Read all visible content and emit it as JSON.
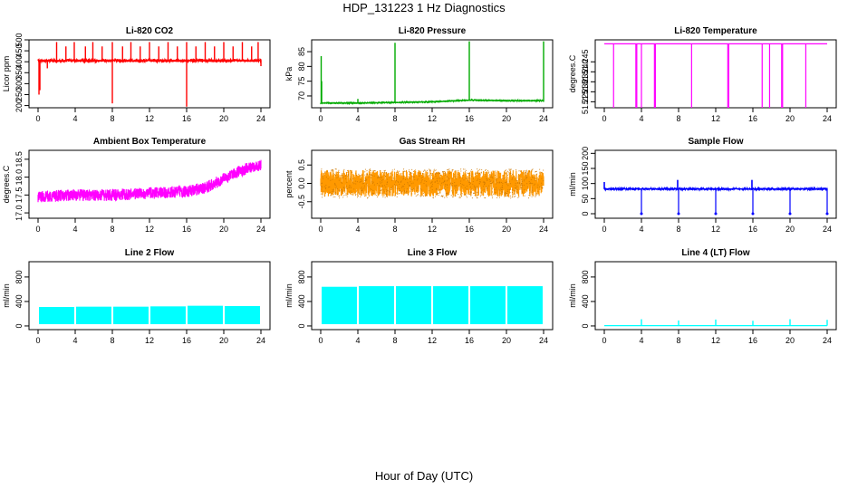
{
  "figure": {
    "title": "HDP_131223  1 Hz Diagnostics",
    "xlabel": "Hour of Day (UTC)"
  },
  "chart_data": [
    {
      "type": "line",
      "title": "Li-820 CO2",
      "ylabel": "Licor ppm",
      "color": "#ff0000",
      "xlim": [
        0,
        24
      ],
      "ylim": [
        190,
        500
      ],
      "xticks": [
        "0",
        "4",
        "8",
        "12",
        "16",
        "20",
        "24"
      ],
      "yticks": [
        "200",
        "250",
        "300",
        "350",
        "400",
        "450",
        "500"
      ],
      "baseline": 405,
      "noise": 12,
      "spikes": [
        {
          "x": 0.1,
          "y": 250
        },
        {
          "x": 0.2,
          "y": 270
        },
        {
          "x": 1.0,
          "y": 370
        },
        {
          "x": 2.0,
          "y": 490
        },
        {
          "x": 3.0,
          "y": 470
        },
        {
          "x": 3.9,
          "y": 490
        },
        {
          "x": 5.1,
          "y": 470
        },
        {
          "x": 5.9,
          "y": 490
        },
        {
          "x": 6.9,
          "y": 470
        },
        {
          "x": 8.0,
          "y": 210
        },
        {
          "x": 8.0,
          "y": 490
        },
        {
          "x": 9.1,
          "y": 470
        },
        {
          "x": 10.0,
          "y": 490
        },
        {
          "x": 11.0,
          "y": 470
        },
        {
          "x": 12.0,
          "y": 490
        },
        {
          "x": 13.0,
          "y": 470
        },
        {
          "x": 14.0,
          "y": 490
        },
        {
          "x": 15.0,
          "y": 470
        },
        {
          "x": 16.0,
          "y": 195
        },
        {
          "x": 16.0,
          "y": 490
        },
        {
          "x": 17.0,
          "y": 470
        },
        {
          "x": 18.0,
          "y": 490
        },
        {
          "x": 19.0,
          "y": 470
        },
        {
          "x": 20.0,
          "y": 490
        },
        {
          "x": 21.0,
          "y": 470
        },
        {
          "x": 22.0,
          "y": 490
        },
        {
          "x": 23.0,
          "y": 470
        },
        {
          "x": 23.7,
          "y": 490
        },
        {
          "x": 24.0,
          "y": 380
        }
      ]
    },
    {
      "type": "line",
      "title": "Li-820 Pressure",
      "ylabel": "kPa",
      "color": "#00aa00",
      "xlim": [
        0,
        24
      ],
      "ylim": [
        66,
        89
      ],
      "xticks": [
        "0",
        "4",
        "8",
        "12",
        "16",
        "20",
        "24"
      ],
      "yticks": [
        "70",
        "75",
        "80",
        "85"
      ],
      "segments": [
        [
          0,
          67.6
        ],
        [
          4,
          67.6
        ],
        [
          8,
          67.8
        ],
        [
          12,
          68.0
        ],
        [
          16,
          68.6
        ],
        [
          20,
          68.4
        ],
        [
          24,
          68.4
        ]
      ],
      "noise": 0.15,
      "spikes": [
        {
          "x": 0.05,
          "y": 83.5
        },
        {
          "x": 0.1,
          "y": 75
        },
        {
          "x": 4.0,
          "y": 69
        },
        {
          "x": 8.0,
          "y": 88
        },
        {
          "x": 16.0,
          "y": 88.5
        },
        {
          "x": 24.0,
          "y": 88.5
        }
      ]
    },
    {
      "type": "line",
      "title": "Li-820 Temperature",
      "ylabel": "degrees.C",
      "color": "#ff00ff",
      "xlim": [
        0,
        24
      ],
      "ylim": [
        51.222,
        51.256
      ],
      "xticks": [
        "0",
        "4",
        "8",
        "12",
        "16",
        "20",
        "24"
      ],
      "yticks": [
        "51.225",
        "51.230",
        "51.235",
        "51.240",
        "51.245"
      ],
      "baseline": 51.254,
      "drops": [
        1.0,
        3.4,
        3.5,
        4.0,
        5.4,
        5.5,
        9.4,
        13.3,
        13.4,
        17.0,
        17.8,
        19.1,
        19.2,
        21.7
      ]
    },
    {
      "type": "line",
      "title": "Ambient Box Temperature",
      "ylabel": "degrees.C",
      "color": "#ff00ff",
      "xlim": [
        0,
        24
      ],
      "ylim": [
        16.85,
        18.75
      ],
      "xticks": [
        "0",
        "4",
        "8",
        "12",
        "16",
        "20",
        "24"
      ],
      "yticks": [
        "17.0",
        "17.5",
        "18.0",
        "18.5"
      ],
      "trend": [
        [
          0,
          17.45
        ],
        [
          4,
          17.5
        ],
        [
          8,
          17.5
        ],
        [
          12,
          17.55
        ],
        [
          16,
          17.6
        ],
        [
          18,
          17.7
        ],
        [
          20,
          17.95
        ],
        [
          22,
          18.2
        ],
        [
          24,
          18.35
        ]
      ],
      "noise": 0.33
    },
    {
      "type": "line",
      "title": "Gas Stream RH",
      "ylabel": "percent",
      "color": "#ff9900",
      "xlim": [
        0,
        24
      ],
      "ylim": [
        -0.95,
        0.9
      ],
      "xticks": [
        "0",
        "4",
        "8",
        "12",
        "16",
        "20",
        "24"
      ],
      "yticks": [
        "-0.5",
        "0.0",
        "0.5"
      ],
      "baseline": 0.0,
      "noise": 0.72
    },
    {
      "type": "line",
      "title": "Sample Flow",
      "ylabel": "ml/min",
      "color": "#0000ff",
      "xlim": [
        0,
        24
      ],
      "ylim": [
        -15,
        210
      ],
      "xticks": [
        "0",
        "4",
        "8",
        "12",
        "16",
        "20",
        "24"
      ],
      "yticks": [
        "0",
        "50",
        "100",
        "150",
        "200"
      ],
      "baseline": 82,
      "noise": 4,
      "dips": [
        4,
        8,
        12,
        16,
        20,
        24
      ],
      "peaks": [
        {
          "x": 0.0,
          "y": 105
        },
        {
          "x": 7.9,
          "y": 112
        },
        {
          "x": 15.9,
          "y": 112
        }
      ]
    },
    {
      "type": "area",
      "title": "Line 2 Flow",
      "ylabel": "ml/min",
      "color": "#00ffff",
      "xlim": [
        0,
        24
      ],
      "ylim": [
        -60,
        1050
      ],
      "xticks": [
        "0",
        "4",
        "8",
        "12",
        "16",
        "20",
        "24"
      ],
      "yticks": [
        "0",
        "400",
        "800"
      ],
      "bands": [
        {
          "x0": 0.1,
          "x1": 3.9,
          "lo": 30,
          "hi": 310
        },
        {
          "x0": 4.1,
          "x1": 7.9,
          "lo": 30,
          "hi": 315
        },
        {
          "x0": 8.1,
          "x1": 11.9,
          "lo": 30,
          "hi": 315
        },
        {
          "x0": 12.1,
          "x1": 15.9,
          "lo": 30,
          "hi": 320
        },
        {
          "x0": 16.1,
          "x1": 19.9,
          "lo": 30,
          "hi": 330
        },
        {
          "x0": 20.1,
          "x1": 23.9,
          "lo": 30,
          "hi": 325
        }
      ]
    },
    {
      "type": "area",
      "title": "Line 3 Flow",
      "ylabel": "ml/min",
      "color": "#00ffff",
      "xlim": [
        0,
        24
      ],
      "ylim": [
        -60,
        1050
      ],
      "xticks": [
        "0",
        "4",
        "8",
        "12",
        "16",
        "20",
        "24"
      ],
      "yticks": [
        "0",
        "400",
        "800"
      ],
      "bands": [
        {
          "x0": 0.1,
          "x1": 3.9,
          "lo": 30,
          "hi": 640
        },
        {
          "x0": 4.1,
          "x1": 7.9,
          "lo": 30,
          "hi": 650
        },
        {
          "x0": 8.1,
          "x1": 11.9,
          "lo": 30,
          "hi": 650
        },
        {
          "x0": 12.1,
          "x1": 15.9,
          "lo": 30,
          "hi": 650
        },
        {
          "x0": 16.1,
          "x1": 19.9,
          "lo": 30,
          "hi": 650
        },
        {
          "x0": 20.1,
          "x1": 23.9,
          "lo": 30,
          "hi": 650
        }
      ]
    },
    {
      "type": "line",
      "title": "Line 4 (LT) Flow",
      "ylabel": "ml/min",
      "color": "#00ffff",
      "xlim": [
        0,
        24
      ],
      "ylim": [
        -60,
        1050
      ],
      "xticks": [
        "0",
        "4",
        "8",
        "12",
        "16",
        "20",
        "24"
      ],
      "yticks": [
        "0",
        "400",
        "800"
      ],
      "baseline": 5,
      "spikes": [
        {
          "x": 4.0,
          "y": 110
        },
        {
          "x": 8.0,
          "y": 90
        },
        {
          "x": 12.0,
          "y": 105
        },
        {
          "x": 16.0,
          "y": 85
        },
        {
          "x": 20.0,
          "y": 110
        },
        {
          "x": 24.0,
          "y": 100
        }
      ]
    }
  ]
}
